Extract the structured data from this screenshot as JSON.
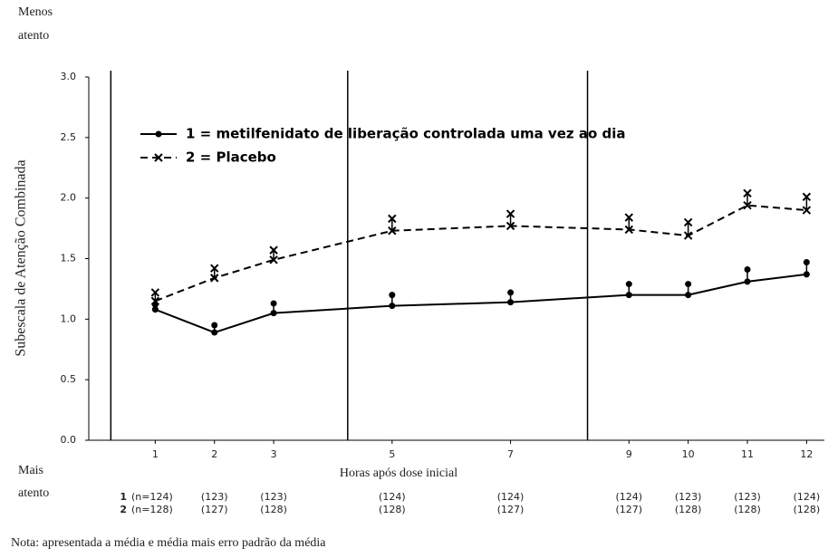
{
  "chart_data": {
    "type": "line",
    "top_label": [
      "Menos",
      "atento"
    ],
    "bottom_label": [
      "Mais",
      "atento"
    ],
    "ylabel": "Subescala de Atenção Combinada",
    "xlabel": "Horas após dose inicial",
    "note": "Nota: apresentada a média e média mais erro padrão da média",
    "x": [
      1,
      2,
      3,
      5,
      7,
      9,
      10,
      11,
      12
    ],
    "xlim": [
      0,
      12.3
    ],
    "xticks": [
      1,
      2,
      3,
      5,
      7,
      9,
      10,
      11,
      12
    ],
    "ylim": [
      0,
      3
    ],
    "yticks": [
      {
        "value": 0,
        "label": "0.0"
      },
      0.5,
      {
        "value": 1,
        "label": "1.0"
      },
      1.5,
      {
        "value": 2,
        "label": "2.0"
      },
      2.5,
      {
        "value": 3,
        "label": "3.0"
      }
    ],
    "vlines": [
      0.25,
      4.25,
      8.3
    ],
    "series": [
      {
        "name": "1 = metilfenidato de liberação controlada uma vez ao dia",
        "color": "#000000",
        "marker": "circle",
        "dashed": false,
        "values": [
          1.08,
          0.89,
          1.05,
          1.11,
          1.14,
          1.2,
          1.2,
          1.31,
          1.37
        ],
        "errors": [
          0.04,
          0.06,
          0.08,
          0.09,
          0.08,
          0.09,
          0.09,
          0.1,
          0.1
        ]
      },
      {
        "name": "2  = Placebo",
        "color": "#000000",
        "marker": "x",
        "dashed": true,
        "values": [
          1.15,
          1.34,
          1.49,
          1.73,
          1.77,
          1.74,
          1.69,
          1.94,
          1.9
        ],
        "errors": [
          0.07,
          0.08,
          0.08,
          0.1,
          0.1,
          0.1,
          0.11,
          0.1,
          0.11
        ]
      }
    ],
    "n_rows": [
      {
        "label": "1",
        "values": [
          "(n=124)",
          "(123)",
          "(123)",
          "(124)",
          "(124)",
          "(124)",
          "(123)",
          "(123)",
          "(124)"
        ]
      },
      {
        "label": "2",
        "values": [
          "(n=128)",
          "(127)",
          "(128)",
          "(128)",
          "(127)",
          "(127)",
          "(128)",
          "(128)",
          "(128)"
        ]
      }
    ]
  }
}
